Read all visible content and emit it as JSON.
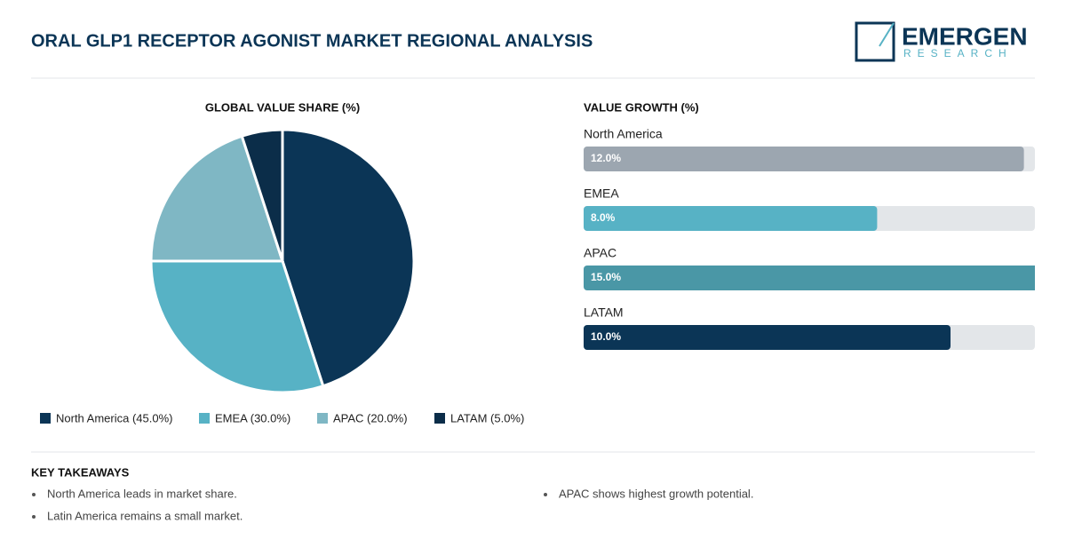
{
  "header": {
    "title": "ORAL GLP1 RECEPTOR AGONIST MARKET REGIONAL ANALYSIS",
    "logo_main": "EMERGEN",
    "logo_sub": "RESEARCH"
  },
  "chart_data": [
    {
      "type": "pie",
      "title": "GLOBAL VALUE SHARE (%)",
      "categories": [
        "North America",
        "EMEA",
        "APAC",
        "LATAM"
      ],
      "values": [
        45.0,
        30.0,
        20.0,
        5.0
      ],
      "legend_labels": [
        "North America (45.0%)",
        "EMEA (30.0%)",
        "APAC (20.0%)",
        "LATAM (5.0%)"
      ],
      "colors": [
        "#0b3556",
        "#57b2c5",
        "#7fb7c4",
        "#0b2d49"
      ]
    },
    {
      "type": "bar",
      "orientation": "horizontal",
      "title": "VALUE GROWTH (%)",
      "categories": [
        "North America",
        "EMEA",
        "APAC",
        "LATAM"
      ],
      "values": [
        12.0,
        8.0,
        15.0,
        10.0
      ],
      "value_labels": [
        "12.0%",
        "8.0%",
        "15.0%",
        "10.0%"
      ],
      "colors": [
        "#9ca6b0",
        "#57b2c5",
        "#4a97a6",
        "#0b3556"
      ],
      "xlim": [
        0,
        12.3
      ]
    }
  ],
  "takeaways": {
    "title": "KEY TAKEAWAYS",
    "items": [
      "North America leads in market share.",
      "Latin America remains a small market.",
      "APAC shows highest growth potential."
    ]
  }
}
